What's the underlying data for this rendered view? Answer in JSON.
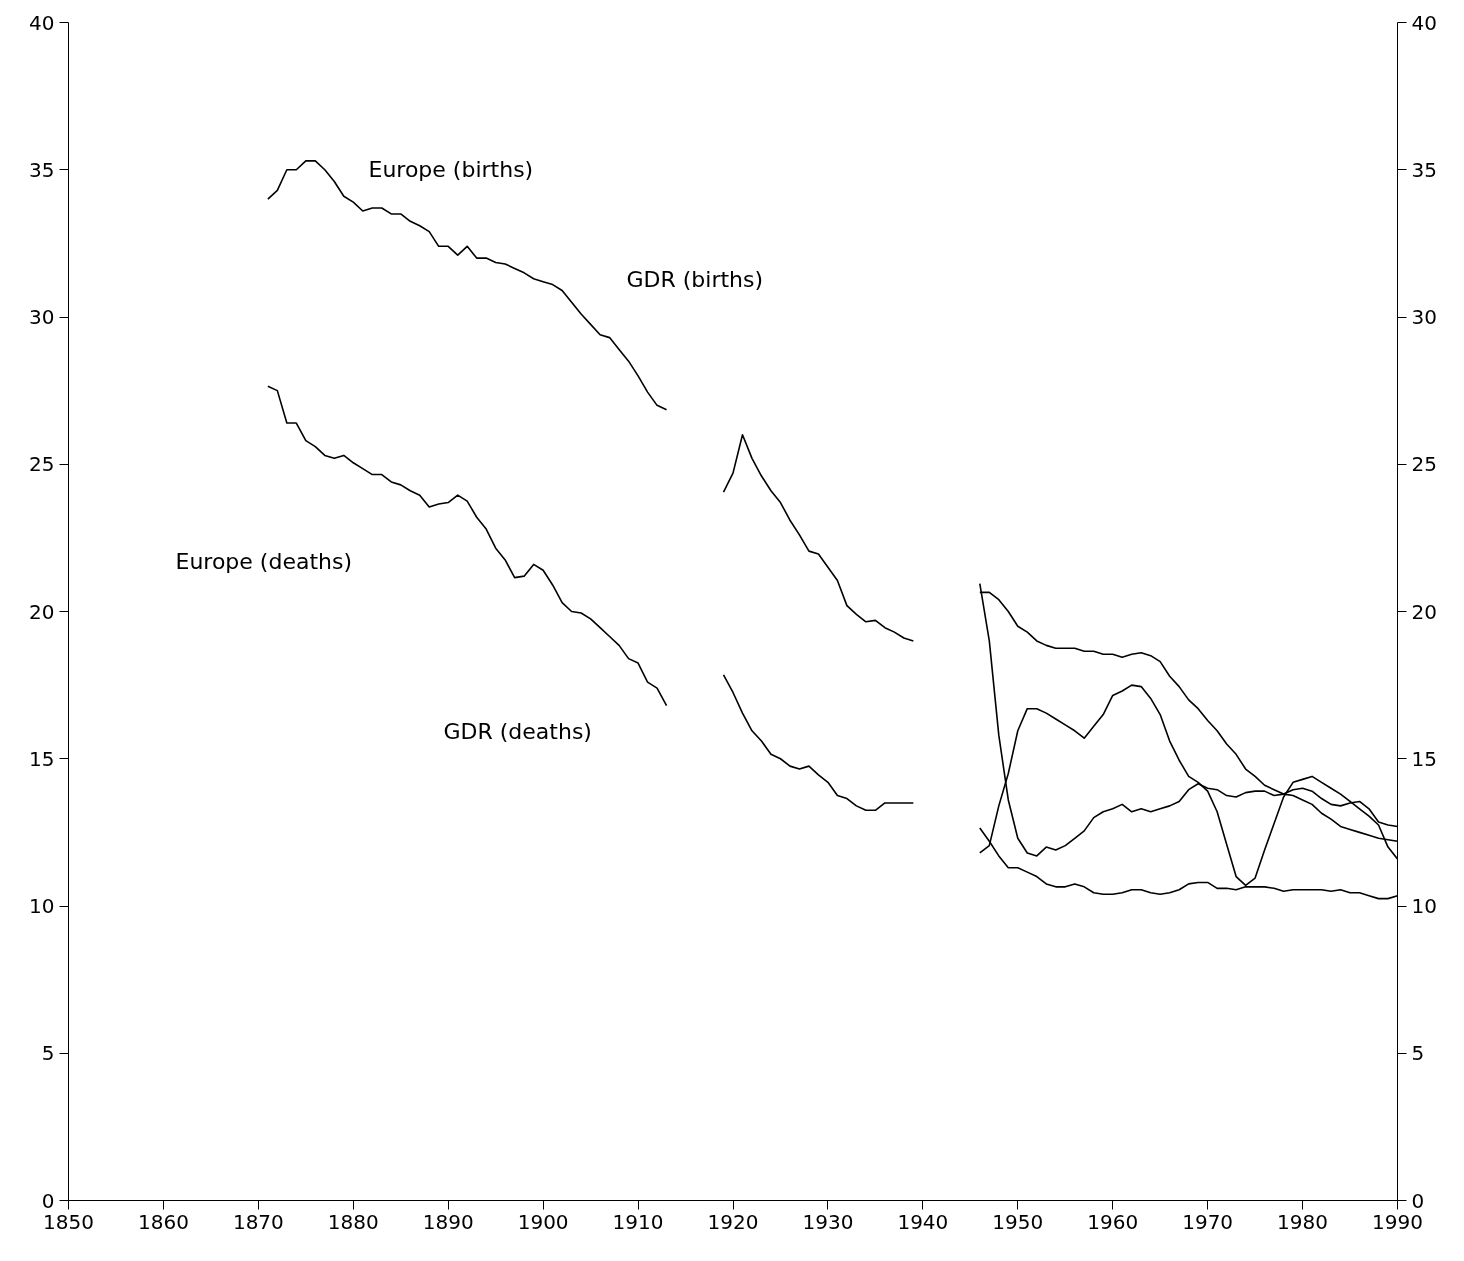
{
  "chart_data": {
    "type": "line",
    "xlim": [
      1850,
      1990
    ],
    "xticks": [
      1850,
      1860,
      1870,
      1880,
      1890,
      1900,
      1910,
      1920,
      1930,
      1940,
      1950,
      1960,
      1970,
      1980,
      1990
    ],
    "ylim": [
      0,
      40
    ],
    "yticks": [
      0,
      5,
      10,
      15,
      20,
      25,
      30,
      35,
      40
    ],
    "y2lim": [
      0,
      40
    ],
    "y2ticks": [
      0,
      5,
      10,
      15,
      20,
      25,
      30,
      35,
      40
    ],
    "grid": false,
    "marker": "none",
    "line_style": "solid",
    "series": [
      {
        "color": "#000000",
        "x": [
          1871,
          1872,
          1873,
          1874,
          1875,
          1876,
          1877,
          1878,
          1879,
          1880,
          1881,
          1882,
          1883,
          1884,
          1885,
          1886,
          1887,
          1888,
          1889,
          1890,
          1891,
          1892,
          1893,
          1894,
          1895,
          1896,
          1897,
          1898,
          1899,
          1900,
          1901,
          1902,
          1903,
          1904,
          1905,
          1906,
          1907,
          1908,
          1909,
          1910,
          1911,
          1912,
          1913,
          1916,
          1919,
          1920,
          1921,
          1922,
          1923,
          1924,
          1925,
          1926,
          1927,
          1928,
          1929,
          1930,
          1931,
          1932,
          1933,
          1934,
          1935,
          1936,
          1937,
          1938,
          1939,
          1942,
          1946,
          1947,
          1948,
          1949,
          1950,
          1951,
          1952,
          1953,
          1954,
          1955,
          1956,
          1957,
          1958,
          1959,
          1960,
          1961,
          1962,
          1963,
          1964,
          1965,
          1966,
          1967,
          1968,
          1969,
          1970,
          1971,
          1972,
          1973,
          1974,
          1975,
          1976,
          1977,
          1978,
          1979,
          1980,
          1981,
          1982,
          1983,
          1984,
          1985,
          1986,
          1987,
          1988,
          1989,
          1990
        ],
        "values": [
          34.0,
          34.3,
          35.0,
          35.0,
          35.3,
          35.3,
          35.0,
          34.6,
          34.1,
          33.9,
          33.6,
          33.7,
          33.7,
          33.5,
          33.5,
          33.25,
          33.1,
          32.9,
          32.4,
          32.4,
          32.1,
          32.4,
          32.0,
          32.0,
          31.85,
          31.8,
          31.65,
          31.5,
          31.3,
          31.2,
          31.1,
          30.9,
          30.5,
          30.1,
          29.75,
          29.4,
          29.3,
          28.9,
          28.5,
          28.0,
          27.45,
          27.0,
          26.85,
          null,
          24.05,
          24.7,
          26.0,
          25.2,
          24.6,
          24.1,
          23.7,
          23.1,
          22.6,
          22.05,
          21.95,
          21.5,
          21.05,
          20.2,
          19.9,
          19.65,
          19.7,
          19.45,
          19.3,
          19.1,
          19.0,
          null,
          20.65,
          20.65,
          20.4,
          20.0,
          19.5,
          19.3,
          19.0,
          18.85,
          18.75,
          18.75,
          18.75,
          18.65,
          18.65,
          18.55,
          18.55,
          18.45,
          18.55,
          18.6,
          18.5,
          18.3,
          17.8,
          17.45,
          17.0,
          16.7,
          16.3,
          15.95,
          15.5,
          15.15,
          14.65,
          14.4,
          14.1,
          13.95,
          13.8,
          13.75,
          13.6,
          13.45,
          13.15,
          12.95,
          12.7,
          12.6,
          12.5,
          12.4,
          12.3,
          12.25,
          12.2
        ]
      },
      {
        "color": "#000000",
        "x": [
          1871,
          1872,
          1873,
          1874,
          1875,
          1876,
          1877,
          1878,
          1879,
          1880,
          1881,
          1882,
          1883,
          1884,
          1885,
          1886,
          1887,
          1888,
          1889,
          1890,
          1891,
          1892,
          1893,
          1894,
          1895,
          1896,
          1897,
          1898,
          1899,
          1900,
          1901,
          1902,
          1903,
          1904,
          1905,
          1906,
          1907,
          1908,
          1909,
          1910,
          1911,
          1912,
          1913,
          1916,
          1919,
          1920,
          1921,
          1922,
          1923,
          1924,
          1925,
          1926,
          1927,
          1928,
          1929,
          1930,
          1931,
          1932,
          1933,
          1934,
          1935,
          1936,
          1937,
          1938,
          1939,
          1942,
          1946,
          1947,
          1948,
          1949,
          1950,
          1951,
          1952,
          1953,
          1954,
          1955,
          1956,
          1957,
          1958,
          1959,
          1960,
          1961,
          1962,
          1963,
          1964,
          1965,
          1966,
          1967,
          1968,
          1969,
          1970,
          1971,
          1972,
          1973,
          1974,
          1975,
          1976,
          1977,
          1978,
          1979,
          1980,
          1981,
          1982,
          1983,
          1984,
          1985,
          1986,
          1987,
          1988,
          1989,
          1990
        ],
        "values": [
          27.65,
          27.5,
          26.4,
          26.4,
          25.8,
          25.6,
          25.3,
          25.2,
          25.3,
          25.05,
          24.85,
          24.65,
          24.65,
          24.4,
          24.3,
          24.1,
          23.95,
          23.55,
          23.65,
          23.7,
          23.95,
          23.75,
          23.2,
          22.8,
          22.15,
          21.75,
          21.15,
          21.2,
          21.6,
          21.4,
          20.9,
          20.3,
          20.0,
          19.95,
          19.75,
          19.45,
          19.15,
          18.85,
          18.4,
          18.25,
          17.6,
          17.4,
          16.8,
          null,
          17.85,
          17.25,
          16.55,
          15.95,
          15.6,
          15.15,
          15.0,
          14.75,
          14.65,
          14.75,
          14.45,
          14.2,
          13.75,
          13.65,
          13.4,
          13.25,
          13.25,
          13.5,
          13.5,
          13.5,
          13.5,
          null,
          12.65,
          12.2,
          11.7,
          11.3,
          11.3,
          11.15,
          11.0,
          10.75,
          10.65,
          10.65,
          10.75,
          10.65,
          10.45,
          10.4,
          10.4,
          10.45,
          10.55,
          10.55,
          10.45,
          10.4,
          10.45,
          10.55,
          10.75,
          10.8,
          10.8,
          10.6,
          10.6,
          10.55,
          10.65,
          10.65,
          10.65,
          10.6,
          10.5,
          10.55,
          10.55,
          10.55,
          10.55,
          10.5,
          10.55,
          10.45,
          10.45,
          10.35,
          10.25,
          10.25,
          10.35
        ]
      },
      {
        "color": "#000000",
        "x": [
          1946,
          1947,
          1948,
          1949,
          1950,
          1951,
          1952,
          1953,
          1954,
          1955,
          1956,
          1957,
          1958,
          1959,
          1960,
          1961,
          1962,
          1963,
          1964,
          1965,
          1966,
          1967,
          1968,
          1969,
          1970,
          1971,
          1972,
          1973,
          1974,
          1975,
          1976,
          1977,
          1978,
          1979,
          1980,
          1981,
          1982,
          1983,
          1984,
          1985,
          1986,
          1987,
          1988,
          1989,
          1990
        ],
        "values": [
          11.8,
          12.05,
          13.4,
          14.5,
          15.95,
          16.7,
          16.7,
          16.55,
          16.35,
          16.15,
          15.95,
          15.7,
          16.1,
          16.5,
          17.15,
          17.3,
          17.5,
          17.45,
          17.05,
          16.5,
          15.6,
          14.95,
          14.4,
          14.2,
          13.9,
          13.2,
          12.1,
          11.0,
          10.7,
          10.95,
          11.9,
          12.8,
          13.7,
          14.2,
          14.3,
          14.4,
          14.2,
          14.0,
          13.8,
          13.55,
          13.3,
          13.05,
          12.75,
          12.0,
          11.6
        ]
      },
      {
        "color": "#000000",
        "x": [
          1946,
          1947,
          1948,
          1949,
          1950,
          1951,
          1952,
          1953,
          1954,
          1955,
          1956,
          1957,
          1958,
          1959,
          1960,
          1961,
          1962,
          1963,
          1964,
          1965,
          1966,
          1967,
          1968,
          1969,
          1970,
          1971,
          1972,
          1973,
          1974,
          1975,
          1976,
          1977,
          1978,
          1979,
          1980,
          1981,
          1982,
          1983,
          1984,
          1985,
          1986,
          1987,
          1988,
          1989,
          1990
        ],
        "values": [
          20.95,
          19.0,
          15.8,
          13.6,
          12.3,
          11.8,
          11.7,
          12.0,
          11.9,
          12.05,
          12.3,
          12.55,
          13.0,
          13.2,
          13.3,
          13.45,
          13.2,
          13.3,
          13.2,
          13.3,
          13.4,
          13.55,
          13.95,
          14.15,
          14.0,
          13.95,
          13.75,
          13.7,
          13.85,
          13.9,
          13.9,
          13.75,
          13.8,
          13.95,
          14.0,
          13.9,
          13.65,
          13.45,
          13.4,
          13.5,
          13.55,
          13.3,
          12.85,
          12.75,
          12.7
        ]
      }
    ],
    "annotations": [
      "Europe (births)",
      "GDR (births)",
      "Europe (deaths)",
      "GDR (deaths)"
    ]
  }
}
